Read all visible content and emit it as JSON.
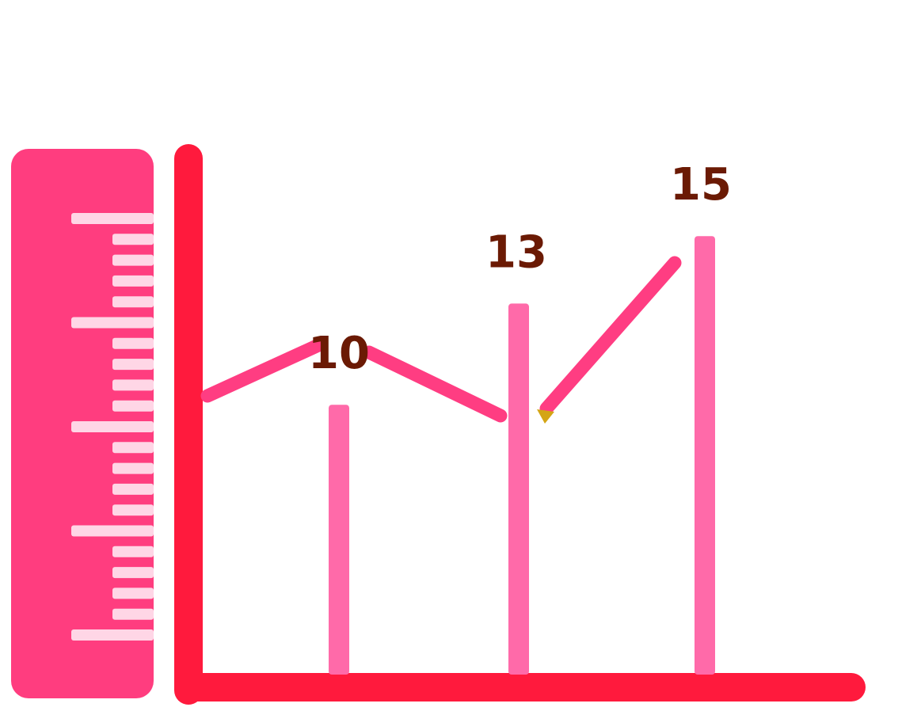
{
  "chart_data": {
    "type": "bar",
    "categories": [
      "",
      "",
      ""
    ],
    "values": [
      10,
      13,
      15
    ],
    "data_labels": [
      "10",
      "13",
      "15"
    ],
    "title": "",
    "xlabel": "",
    "ylabel": "",
    "grid": false,
    "legend": "none"
  },
  "colors": {
    "axis": "#ff1a3d",
    "ruler": "#ff3d7f",
    "ruler_ticks": "#ffd6e6",
    "bar": "#ff6aa9",
    "line": "#ff3d82",
    "pencil_tip": "#d4a514",
    "label": "#6b1a04"
  }
}
